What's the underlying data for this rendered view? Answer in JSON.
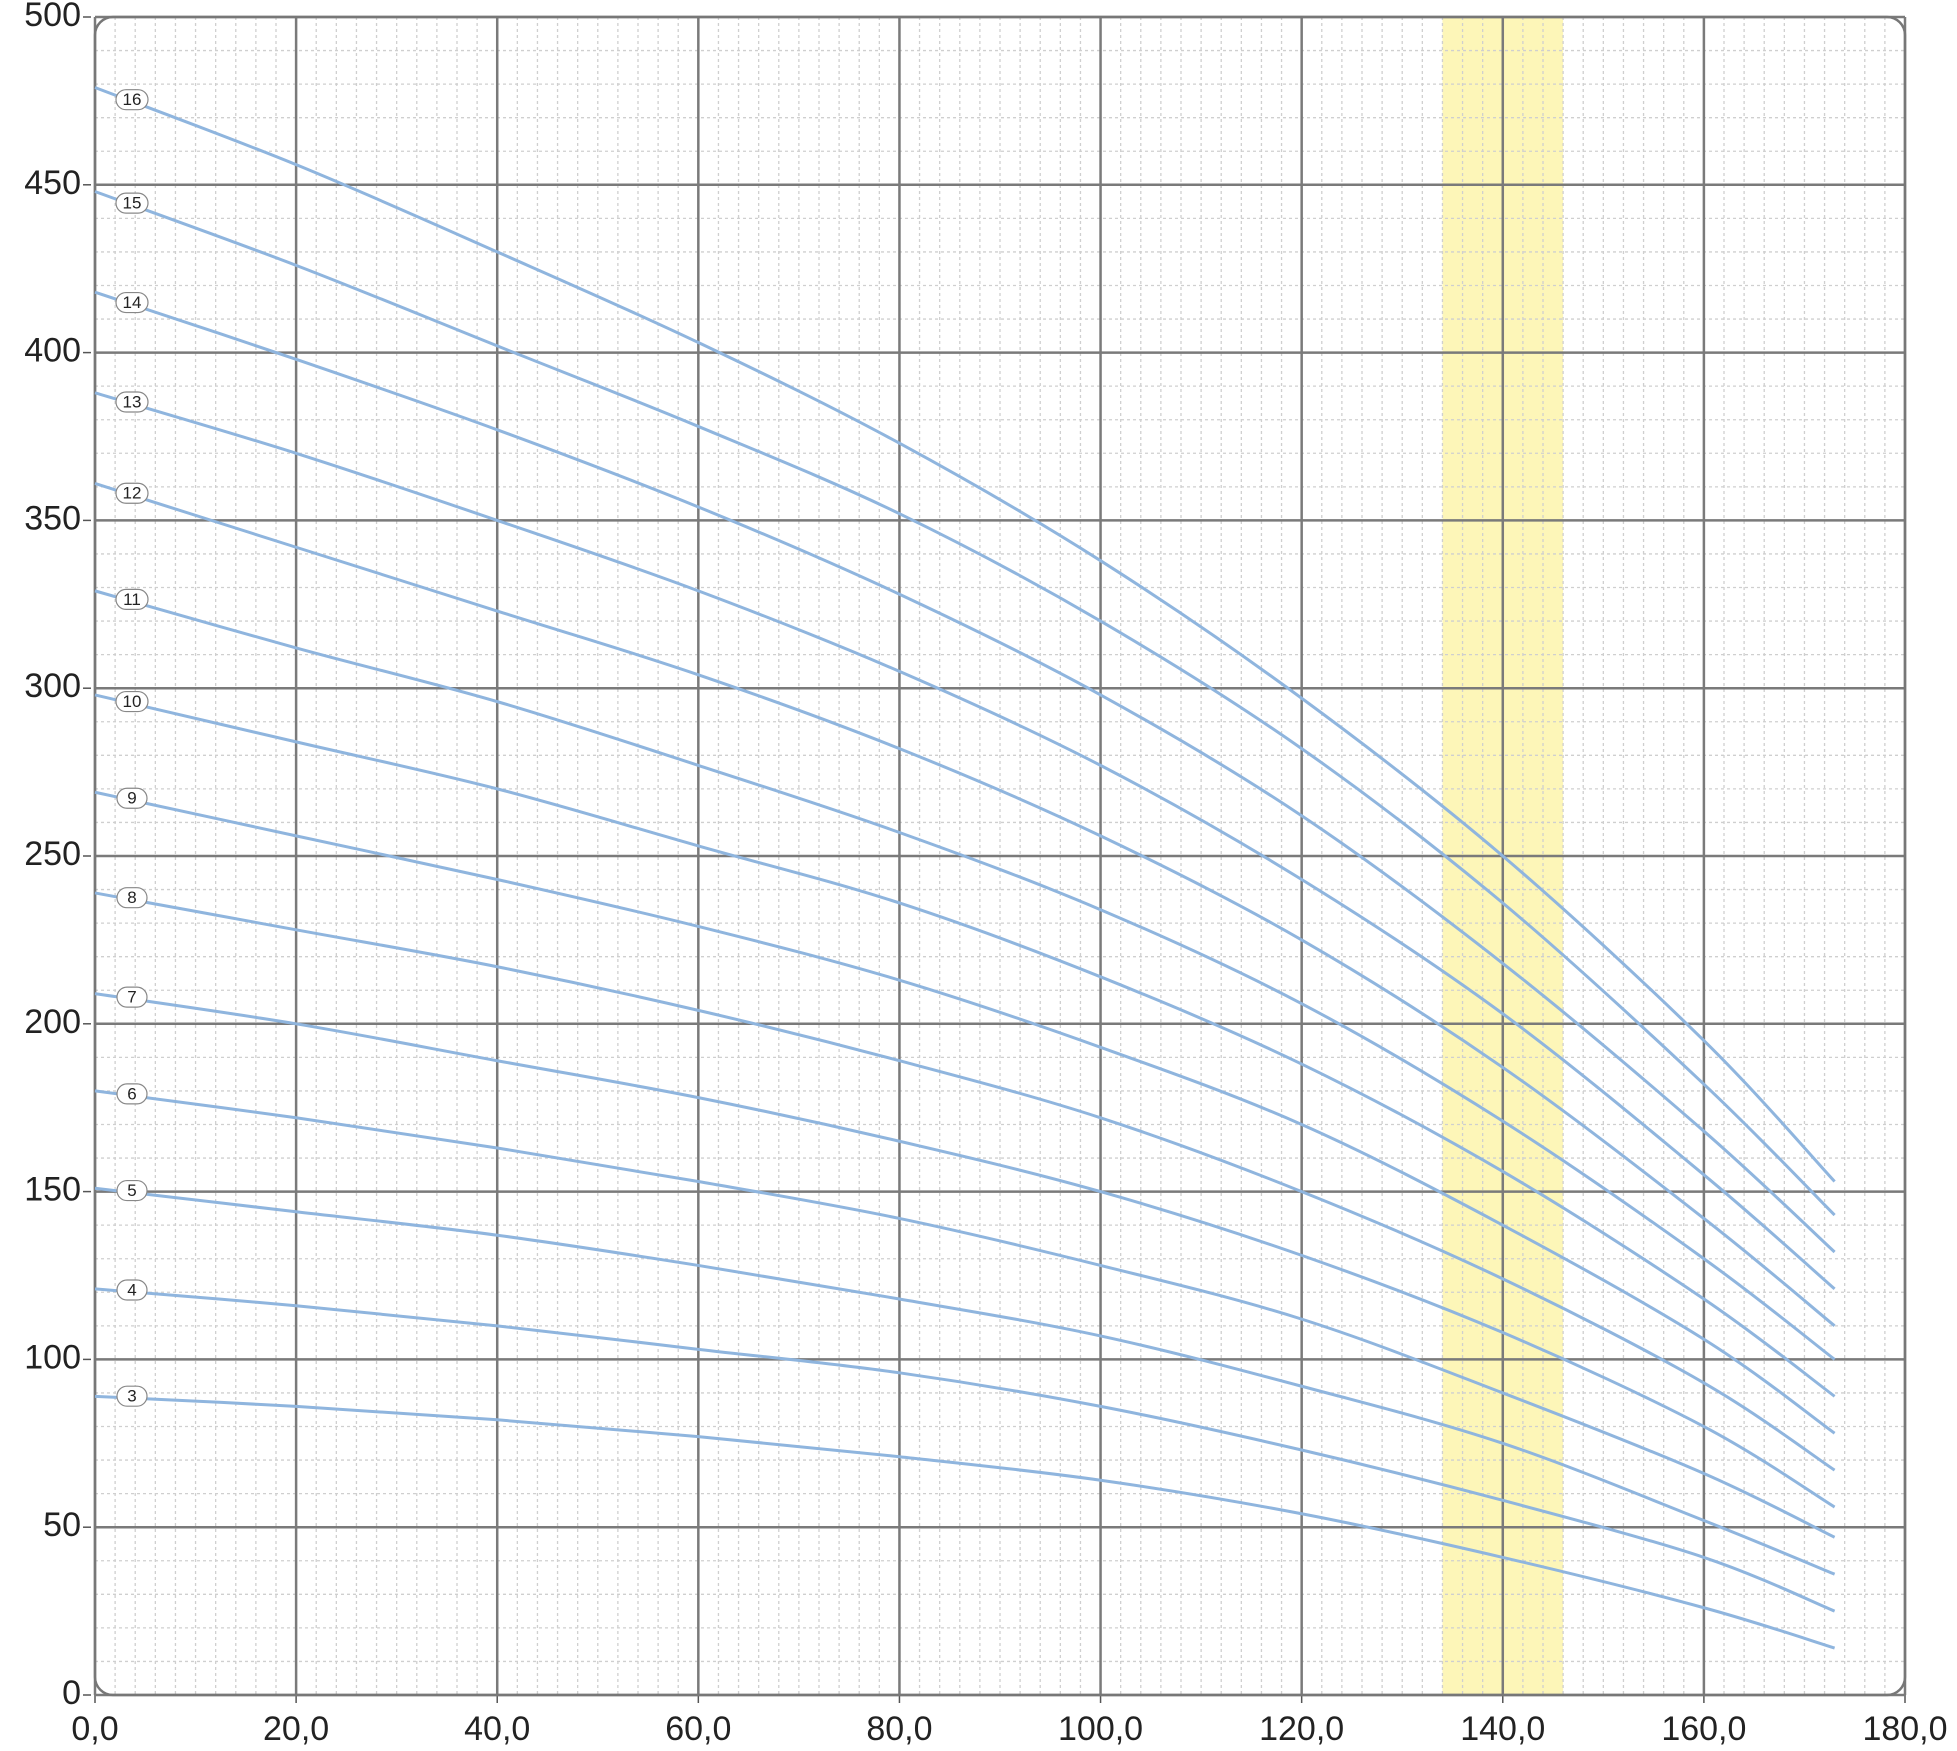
{
  "chart_data": {
    "type": "line",
    "x": [
      0,
      20,
      40,
      60,
      80,
      100,
      120,
      140,
      160,
      173
    ],
    "series": [
      {
        "name": "16",
        "color": "#8fb5de",
        "values": [
          479,
          456,
          430,
          403,
          373,
          338,
          297,
          250,
          195,
          153
        ]
      },
      {
        "name": "15",
        "color": "#8fb5de",
        "values": [
          448,
          426,
          402,
          378,
          352,
          320,
          282,
          236,
          182,
          143
        ]
      },
      {
        "name": "14",
        "color": "#8fb5de",
        "values": [
          418,
          398,
          377,
          354,
          328,
          298,
          262,
          218,
          168,
          132
        ]
      },
      {
        "name": "13",
        "color": "#8fb5de",
        "values": [
          388,
          370,
          350,
          329,
          305,
          277,
          243,
          203,
          155,
          121
        ]
      },
      {
        "name": "12",
        "color": "#8fb5de",
        "values": [
          361,
          342,
          323,
          304,
          282,
          256,
          225,
          187,
          142,
          110
        ]
      },
      {
        "name": "11",
        "color": "#8fb5de",
        "values": [
          329,
          312,
          296,
          277,
          257,
          234,
          206,
          171,
          130,
          100
        ]
      },
      {
        "name": "10",
        "color": "#8fb5de",
        "values": [
          298,
          284,
          270,
          253,
          236,
          214,
          188,
          156,
          118,
          89
        ]
      },
      {
        "name": "9",
        "color": "#8fb5de",
        "values": [
          269,
          256,
          243,
          229,
          213,
          193,
          170,
          140,
          106,
          78
        ]
      },
      {
        "name": "8",
        "color": "#8fb5de",
        "values": [
          239,
          228,
          217,
          204,
          189,
          172,
          150,
          124,
          93,
          67
        ]
      },
      {
        "name": "7",
        "color": "#8fb5de",
        "values": [
          209,
          200,
          189,
          178,
          165,
          150,
          131,
          108,
          80,
          56
        ]
      },
      {
        "name": "6",
        "color": "#8fb5de",
        "values": [
          180,
          172,
          163,
          153,
          142,
          128,
          112,
          90,
          66,
          47
        ]
      },
      {
        "name": "5",
        "color": "#8fb5de",
        "values": [
          151,
          144,
          137,
          128,
          118,
          107,
          92,
          75,
          52,
          36
        ]
      },
      {
        "name": "4",
        "color": "#8fb5de",
        "values": [
          121,
          116,
          110,
          103,
          96,
          86,
          73,
          58,
          41,
          25
        ]
      },
      {
        "name": "3",
        "color": "#8fb5de",
        "values": [
          89,
          86,
          82,
          77,
          71,
          64,
          54,
          41,
          26,
          14
        ]
      }
    ],
    "xlim": [
      0,
      180
    ],
    "xticks": [
      {
        "value": 0,
        "label": "0,0"
      },
      {
        "value": 20,
        "label": "20,0"
      },
      {
        "value": 40,
        "label": "40,0"
      },
      {
        "value": 60,
        "label": "60,0"
      },
      {
        "value": 80,
        "label": "80,0"
      },
      {
        "value": 100,
        "label": "100,0"
      },
      {
        "value": 120,
        "label": "120,0"
      },
      {
        "value": 140,
        "label": "140,0"
      },
      {
        "value": 160,
        "label": "160,0"
      },
      {
        "value": 180,
        "label": "180,0"
      }
    ],
    "ylim": [
      0,
      500
    ],
    "yticks": [
      0,
      50,
      100,
      150,
      200,
      250,
      300,
      350,
      400,
      450,
      500
    ],
    "highlight": [
      134,
      146
    ],
    "highlight_color": "#fdf6b8",
    "grid": true
  }
}
